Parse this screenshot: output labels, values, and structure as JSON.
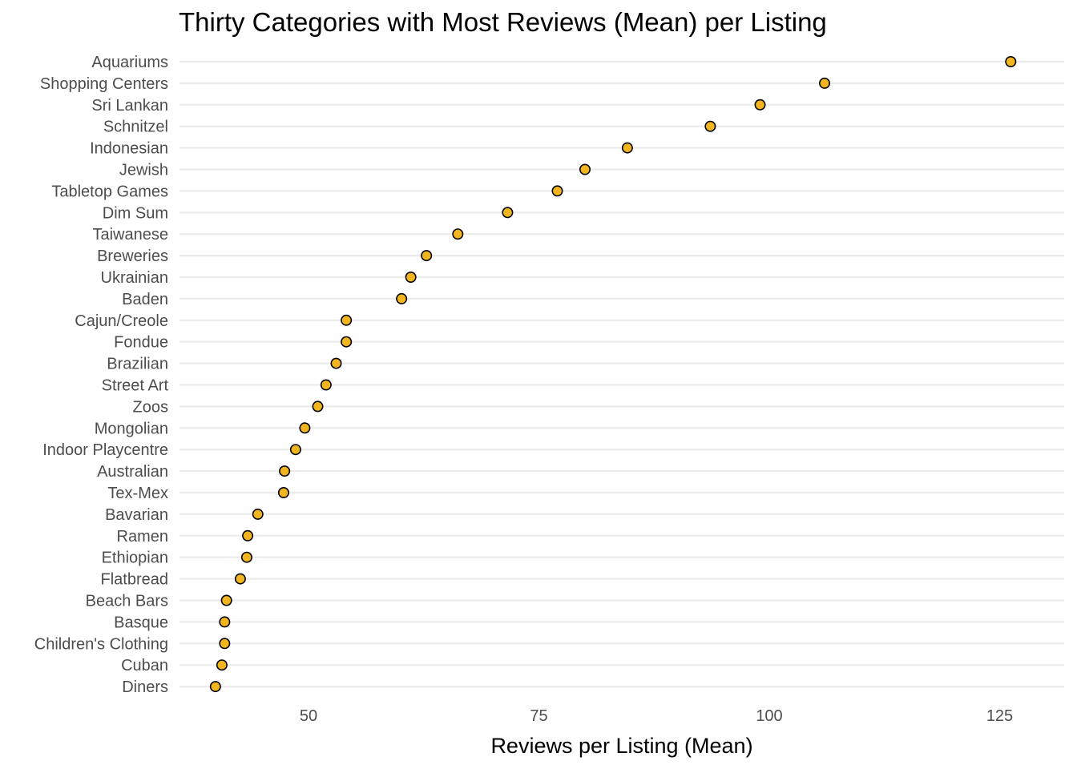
{
  "chart_data": {
    "type": "scatter",
    "title": "Thirty Categories with Most Reviews (Mean) per Listing",
    "xlabel": "Reviews per Listing (Mean)",
    "ylabel": "",
    "xlim": [
      36,
      132
    ],
    "x_ticks": [
      50,
      75,
      100,
      125
    ],
    "grid": "horizontal",
    "point_color": "#F0B51F",
    "point_outline": "#000000",
    "categories": [
      "Aquariums",
      "Shopping Centers",
      "Sri Lankan",
      "Schnitzel",
      "Indonesian",
      "Jewish",
      "Tabletop Games",
      "Dim Sum",
      "Taiwanese",
      "Breweries",
      "Ukrainian",
      "Baden",
      "Cajun/Creole",
      "Fondue",
      "Brazilian",
      "Street Art",
      "Zoos",
      "Mongolian",
      "Indoor Playcentre",
      "Australian",
      "Tex-Mex",
      "Bavarian",
      "Ramen",
      "Ethiopian",
      "Flatbread",
      "Beach Bars",
      "Basque",
      "Children's Clothing",
      "Cuban",
      "Diners"
    ],
    "values": [
      126.2,
      106.0,
      99.0,
      93.6,
      84.6,
      80.0,
      77.0,
      71.6,
      66.2,
      62.8,
      61.1,
      60.1,
      54.1,
      54.1,
      53.0,
      51.9,
      51.0,
      49.6,
      48.6,
      47.4,
      47.3,
      44.5,
      43.4,
      43.3,
      42.6,
      41.1,
      40.9,
      40.9,
      40.6,
      39.9
    ]
  }
}
